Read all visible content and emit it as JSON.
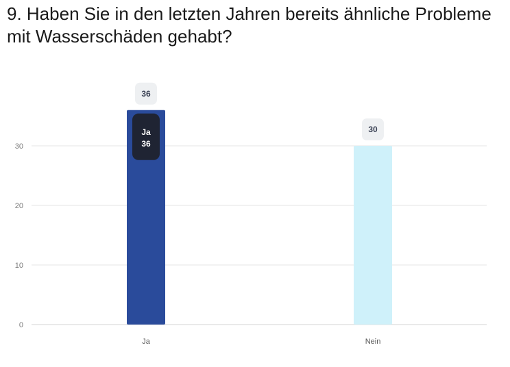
{
  "title": "9. Haben Sie in den letzten Jahren bereits ähnliche Probleme mit Wasserschäden gehabt?",
  "colors": {
    "bar_ja": "#2a4b9b",
    "bar_nein": "#cff1fa",
    "grid": "#e6e6e6",
    "label_bg": "#eef0f2",
    "tooltip_bg": "#1f2433"
  },
  "chart_data": {
    "type": "bar",
    "categories": [
      "Ja",
      "Nein"
    ],
    "values": [
      36,
      30
    ],
    "ylim": [
      0,
      37
    ],
    "yticks": [
      0,
      10,
      20,
      30
    ],
    "grid": true,
    "data_labels": [
      "36",
      "30"
    ],
    "tooltip": {
      "category": "Ja",
      "value": "36"
    }
  }
}
